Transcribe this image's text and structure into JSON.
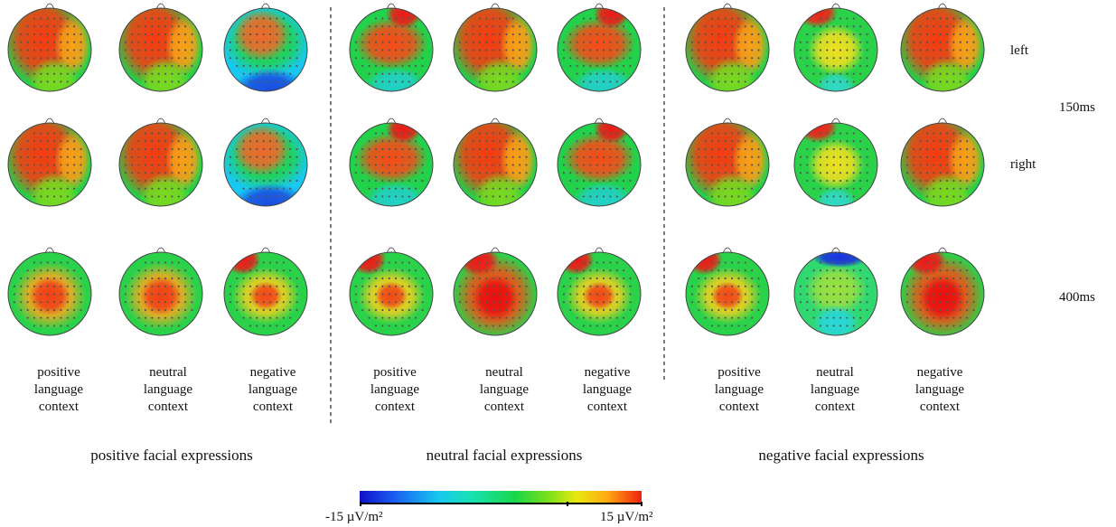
{
  "groups": [
    {
      "label": "positive facial expressions"
    },
    {
      "label": "neutral facial expressions"
    },
    {
      "label": "negative facial expressions"
    }
  ],
  "conditions": [
    "positive\nlanguage\ncontext",
    "neutral\nlanguage\ncontext",
    "negative\nlanguage\ncontext"
  ],
  "row_labels": {
    "left": "left",
    "right": "right",
    "t150": "150ms",
    "t400": "400ms"
  },
  "colorbar": {
    "min_label": "-15 µV/m²",
    "max_label": "15 µV/m²",
    "min": -15,
    "max": 15,
    "unit": "µV/m²"
  },
  "colormap": "jet",
  "rows": [
    "left 150ms",
    "right 150ms",
    "400ms"
  ]
}
